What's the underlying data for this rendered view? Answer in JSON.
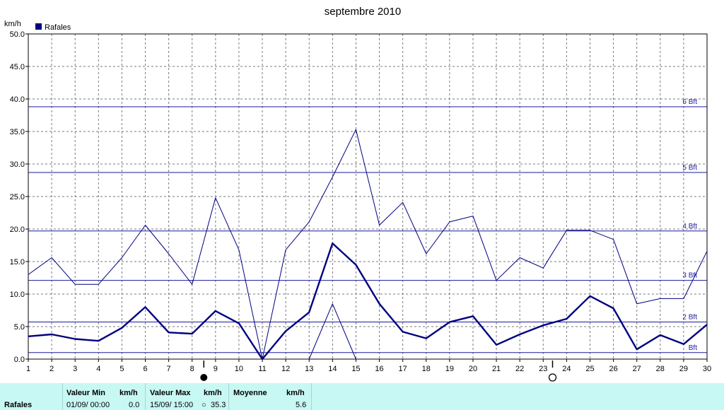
{
  "chart_data": {
    "type": "line",
    "title": "septembre 2010",
    "ylabel": "km/h",
    "ylim": [
      0,
      50
    ],
    "yticks": [
      "0.0",
      "5.0",
      "10.0",
      "15.0",
      "20.0",
      "25.0",
      "30.0",
      "35.0",
      "40.0",
      "45.0",
      "50.0"
    ],
    "x": [
      1,
      2,
      3,
      4,
      5,
      6,
      7,
      8,
      9,
      10,
      11,
      12,
      13,
      14,
      15,
      16,
      17,
      18,
      19,
      20,
      21,
      22,
      23,
      24,
      25,
      26,
      27,
      28,
      29,
      30
    ],
    "grid": true,
    "legend": {
      "placement": "top-left",
      "entries": [
        "Rafales"
      ]
    },
    "series": [
      {
        "name": "Rafales",
        "values": [
          3.5,
          3.8,
          3.1,
          2.8,
          4.8,
          8.0,
          4.1,
          3.9,
          7.4,
          5.5,
          0.0,
          4.3,
          7.2,
          17.8,
          14.5,
          8.5,
          4.2,
          3.2,
          5.7,
          6.6,
          2.2,
          3.8,
          5.2,
          6.2,
          9.7,
          7.8,
          1.5,
          3.7,
          2.3,
          5.3
        ],
        "color": "#000080",
        "weight": "bold"
      },
      {
        "values": [
          13.0,
          15.6,
          11.5,
          11.5,
          15.6,
          20.6,
          16.2,
          11.5,
          24.8,
          16.8,
          0.0,
          16.8,
          21.1,
          28.0,
          35.3,
          20.6,
          24.1,
          16.2,
          21.1,
          22.0,
          12.1,
          15.6,
          14.0,
          19.8,
          19.8,
          18.4,
          8.5,
          9.3,
          9.3,
          16.6
        ],
        "color": "#000080",
        "weight": "thin"
      },
      {
        "values": [
          null,
          null,
          null,
          null,
          null,
          null,
          null,
          null,
          null,
          null,
          null,
          null,
          0.0,
          8.5,
          0.0,
          null,
          null,
          null,
          null,
          null,
          null,
          null,
          null,
          null,
          null,
          null,
          null,
          null,
          null,
          null
        ],
        "color": "#000080",
        "weight": "thin"
      }
    ],
    "beaufort": [
      {
        "label": "Bft",
        "value": 1.0
      },
      {
        "label": "2 Bft",
        "value": 5.7
      },
      {
        "label": "3 Bft",
        "value": 12.1
      },
      {
        "label": "4 Bft",
        "value": 19.7
      },
      {
        "label": "5 Bft",
        "value": 28.7
      },
      {
        "label": "6 Bft",
        "value": 38.8
      }
    ],
    "moon_phases": [
      {
        "day": 8.5,
        "phase": "new-moon"
      },
      {
        "day": 23.4,
        "phase": "full-moon"
      }
    ]
  },
  "stats": {
    "row_label": "Rafales",
    "min_header": "Valeur Min",
    "min_unit": "km/h",
    "min_date": "01/09/  00:00",
    "min_value": "0.0",
    "max_header": "Valeur Max",
    "max_unit": "km/h",
    "max_date": "15/09/  15:00",
    "max_value": "35.3",
    "avg_header": "Moyenne",
    "avg_unit": "km/h",
    "avg_value": "5.6"
  }
}
